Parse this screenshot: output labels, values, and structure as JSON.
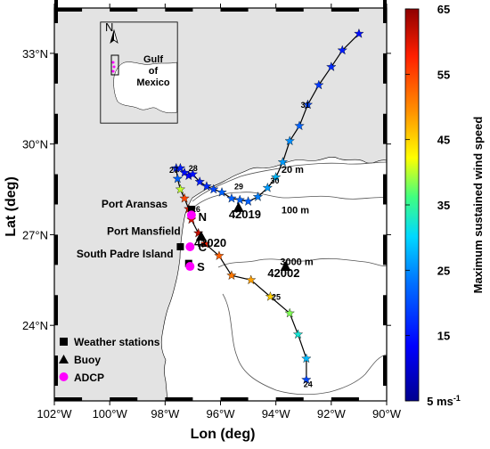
{
  "axes": {
    "xlabel": "Lon (deg)",
    "ylabel": "Lat (deg)",
    "lon_range": [
      -102,
      -90
    ],
    "lat_range": [
      21.5,
      34.5
    ],
    "xticks": [
      {
        "value": -102,
        "label": "102°W"
      },
      {
        "value": -100,
        "label": "100°W"
      },
      {
        "value": -98,
        "label": "98°W"
      },
      {
        "value": -96,
        "label": "96°W"
      },
      {
        "value": -94,
        "label": "94°W"
      },
      {
        "value": -92,
        "label": "92°W"
      },
      {
        "value": -90,
        "label": "90°W"
      }
    ],
    "yticks": [
      {
        "value": 24,
        "label": "24°N"
      },
      {
        "value": 27,
        "label": "27°N"
      },
      {
        "value": 30,
        "label": "30°N"
      },
      {
        "value": 33,
        "label": "33°N"
      }
    ]
  },
  "colorbar": {
    "title": "Maximum sustained wind speed",
    "range": [
      5,
      65
    ],
    "ticks": [
      {
        "value": 65,
        "label": "65"
      },
      {
        "value": 55,
        "label": "55"
      },
      {
        "value": 45,
        "label": "45"
      },
      {
        "value": 35,
        "label": "35"
      },
      {
        "value": 25,
        "label": "25"
      },
      {
        "value": 15,
        "label": "15"
      },
      {
        "value": 5,
        "label": "5 ms"
      }
    ],
    "unit_superscript": "-1"
  },
  "colors": {
    "land": "#e3e3e3",
    "sea": "#ffffff",
    "track": "#000000",
    "adcp": "#ff00ff"
  },
  "track": {
    "points": [
      {
        "lon": -92.9,
        "lat": 22.2,
        "wind": 20
      },
      {
        "lon": -92.9,
        "lat": 22.9,
        "wind": 28
      },
      {
        "lon": -93.2,
        "lat": 23.7,
        "wind": 32
      },
      {
        "lon": -93.5,
        "lat": 24.4,
        "wind": 38
      },
      {
        "lon": -94.2,
        "lat": 24.95,
        "wind": 45
      },
      {
        "lon": -94.9,
        "lat": 25.5,
        "wind": 48
      },
      {
        "lon": -95.6,
        "lat": 25.65,
        "wind": 51
      },
      {
        "lon": -96.05,
        "lat": 26.3,
        "wind": 53
      },
      {
        "lon": -96.55,
        "lat": 26.7,
        "wind": 58
      },
      {
        "lon": -96.8,
        "lat": 27.05,
        "wind": 62
      },
      {
        "lon": -97.05,
        "lat": 27.5,
        "wind": 61
      },
      {
        "lon": -97.15,
        "lat": 27.85,
        "wind": 60
      },
      {
        "lon": -97.3,
        "lat": 28.2,
        "wind": 55
      },
      {
        "lon": -97.45,
        "lat": 28.5,
        "wind": 40
      },
      {
        "lon": -97.55,
        "lat": 28.85,
        "wind": 22
      },
      {
        "lon": -97.6,
        "lat": 29.2,
        "wind": 18
      },
      {
        "lon": -97.45,
        "lat": 29.2,
        "wind": 17
      },
      {
        "lon": -97.3,
        "lat": 29.05,
        "wind": 16
      },
      {
        "lon": -97.15,
        "lat": 28.95,
        "wind": 15
      },
      {
        "lon": -97.0,
        "lat": 29.0,
        "wind": 16
      },
      {
        "lon": -96.75,
        "lat": 28.75,
        "wind": 17
      },
      {
        "lon": -96.5,
        "lat": 28.6,
        "wind": 18
      },
      {
        "lon": -96.25,
        "lat": 28.5,
        "wind": 20
      },
      {
        "lon": -95.95,
        "lat": 28.4,
        "wind": 22
      },
      {
        "lon": -95.6,
        "lat": 28.2,
        "wind": 22
      },
      {
        "lon": -95.3,
        "lat": 28.15,
        "wind": 22
      },
      {
        "lon": -95.0,
        "lat": 28.1,
        "wind": 22
      },
      {
        "lon": -94.65,
        "lat": 28.25,
        "wind": 24
      },
      {
        "lon": -94.3,
        "lat": 28.55,
        "wind": 26
      },
      {
        "lon": -94.0,
        "lat": 28.9,
        "wind": 28
      },
      {
        "lon": -93.75,
        "lat": 29.4,
        "wind": 26
      },
      {
        "lon": -93.5,
        "lat": 30.1,
        "wind": 25
      },
      {
        "lon": -93.15,
        "lat": 30.6,
        "wind": 22
      },
      {
        "lon": -92.85,
        "lat": 31.3,
        "wind": 20
      },
      {
        "lon": -92.45,
        "lat": 31.95,
        "wind": 19
      },
      {
        "lon": -92.0,
        "lat": 32.55,
        "wind": 18
      },
      {
        "lon": -91.6,
        "lat": 33.1,
        "wind": 17
      },
      {
        "lon": -91.0,
        "lat": 33.65,
        "wind": 16
      }
    ],
    "day_labels": [
      {
        "lon": -93.0,
        "lat": 21.95,
        "label": "24"
      },
      {
        "lon": -94.15,
        "lat": 24.85,
        "label": "25"
      },
      {
        "lon": -97.05,
        "lat": 27.75,
        "label": "26"
      },
      {
        "lon": -97.85,
        "lat": 29.05,
        "label": "27"
      },
      {
        "lon": -97.15,
        "lat": 29.1,
        "label": "28"
      },
      {
        "lon": -95.5,
        "lat": 28.5,
        "label": "29"
      },
      {
        "lon": -94.2,
        "lat": 28.7,
        "label": "30"
      },
      {
        "lon": -93.1,
        "lat": 31.2,
        "label": "31"
      }
    ]
  },
  "isobaths": [
    {
      "label": "20 m",
      "lon": -93.8,
      "lat": 29.05
    },
    {
      "label": "100 m",
      "lon": -93.8,
      "lat": 27.7
    },
    {
      "label": "3000 m",
      "lon": -93.85,
      "lat": 26.0
    }
  ],
  "stations": [
    {
      "name": "Port Aransas",
      "type": "weather",
      "lon": -97.05,
      "lat": 27.84,
      "label_lon": -100.3,
      "label_lat": 27.9
    },
    {
      "name": "Port Mansfield",
      "type": "weather",
      "lon": -97.45,
      "lat": 26.6,
      "label_lon": -100.1,
      "label_lat": 27.0
    },
    {
      "name": "South Padre Island",
      "type": "weather",
      "lon": -97.15,
      "lat": 26.05,
      "label_lon": -101.2,
      "label_lat": 26.25
    },
    {
      "name": "42019",
      "type": "buoy",
      "lon": -95.35,
      "lat": 27.9,
      "label_lon": -95.7,
      "label_lat": 27.55
    },
    {
      "name": "42020",
      "type": "buoy",
      "lon": -96.7,
      "lat": 26.95,
      "label_lon": -96.95,
      "label_lat": 26.6
    },
    {
      "name": "42002",
      "type": "buoy",
      "lon": -93.65,
      "lat": 25.95,
      "label_lon": -94.3,
      "label_lat": 25.6
    },
    {
      "name": "N",
      "type": "adcp",
      "lon": -97.05,
      "lat": 27.65,
      "label_lon": -96.8,
      "label_lat": 27.45
    },
    {
      "name": "C",
      "type": "adcp",
      "lon": -97.1,
      "lat": 26.6,
      "label_lon": -96.8,
      "label_lat": 26.45
    },
    {
      "name": "S",
      "type": "adcp",
      "lon": -97.1,
      "lat": 25.95,
      "label_lon": -96.85,
      "label_lat": 25.8
    }
  ],
  "legend": [
    {
      "type": "weather",
      "label": "Weather stations"
    },
    {
      "type": "buoy",
      "label": "Buoy"
    },
    {
      "type": "adcp",
      "label": "ADCP"
    }
  ],
  "inset": {
    "title_line1": "Gulf",
    "title_line2": "of",
    "title_line3": "Mexico",
    "north": "N"
  }
}
